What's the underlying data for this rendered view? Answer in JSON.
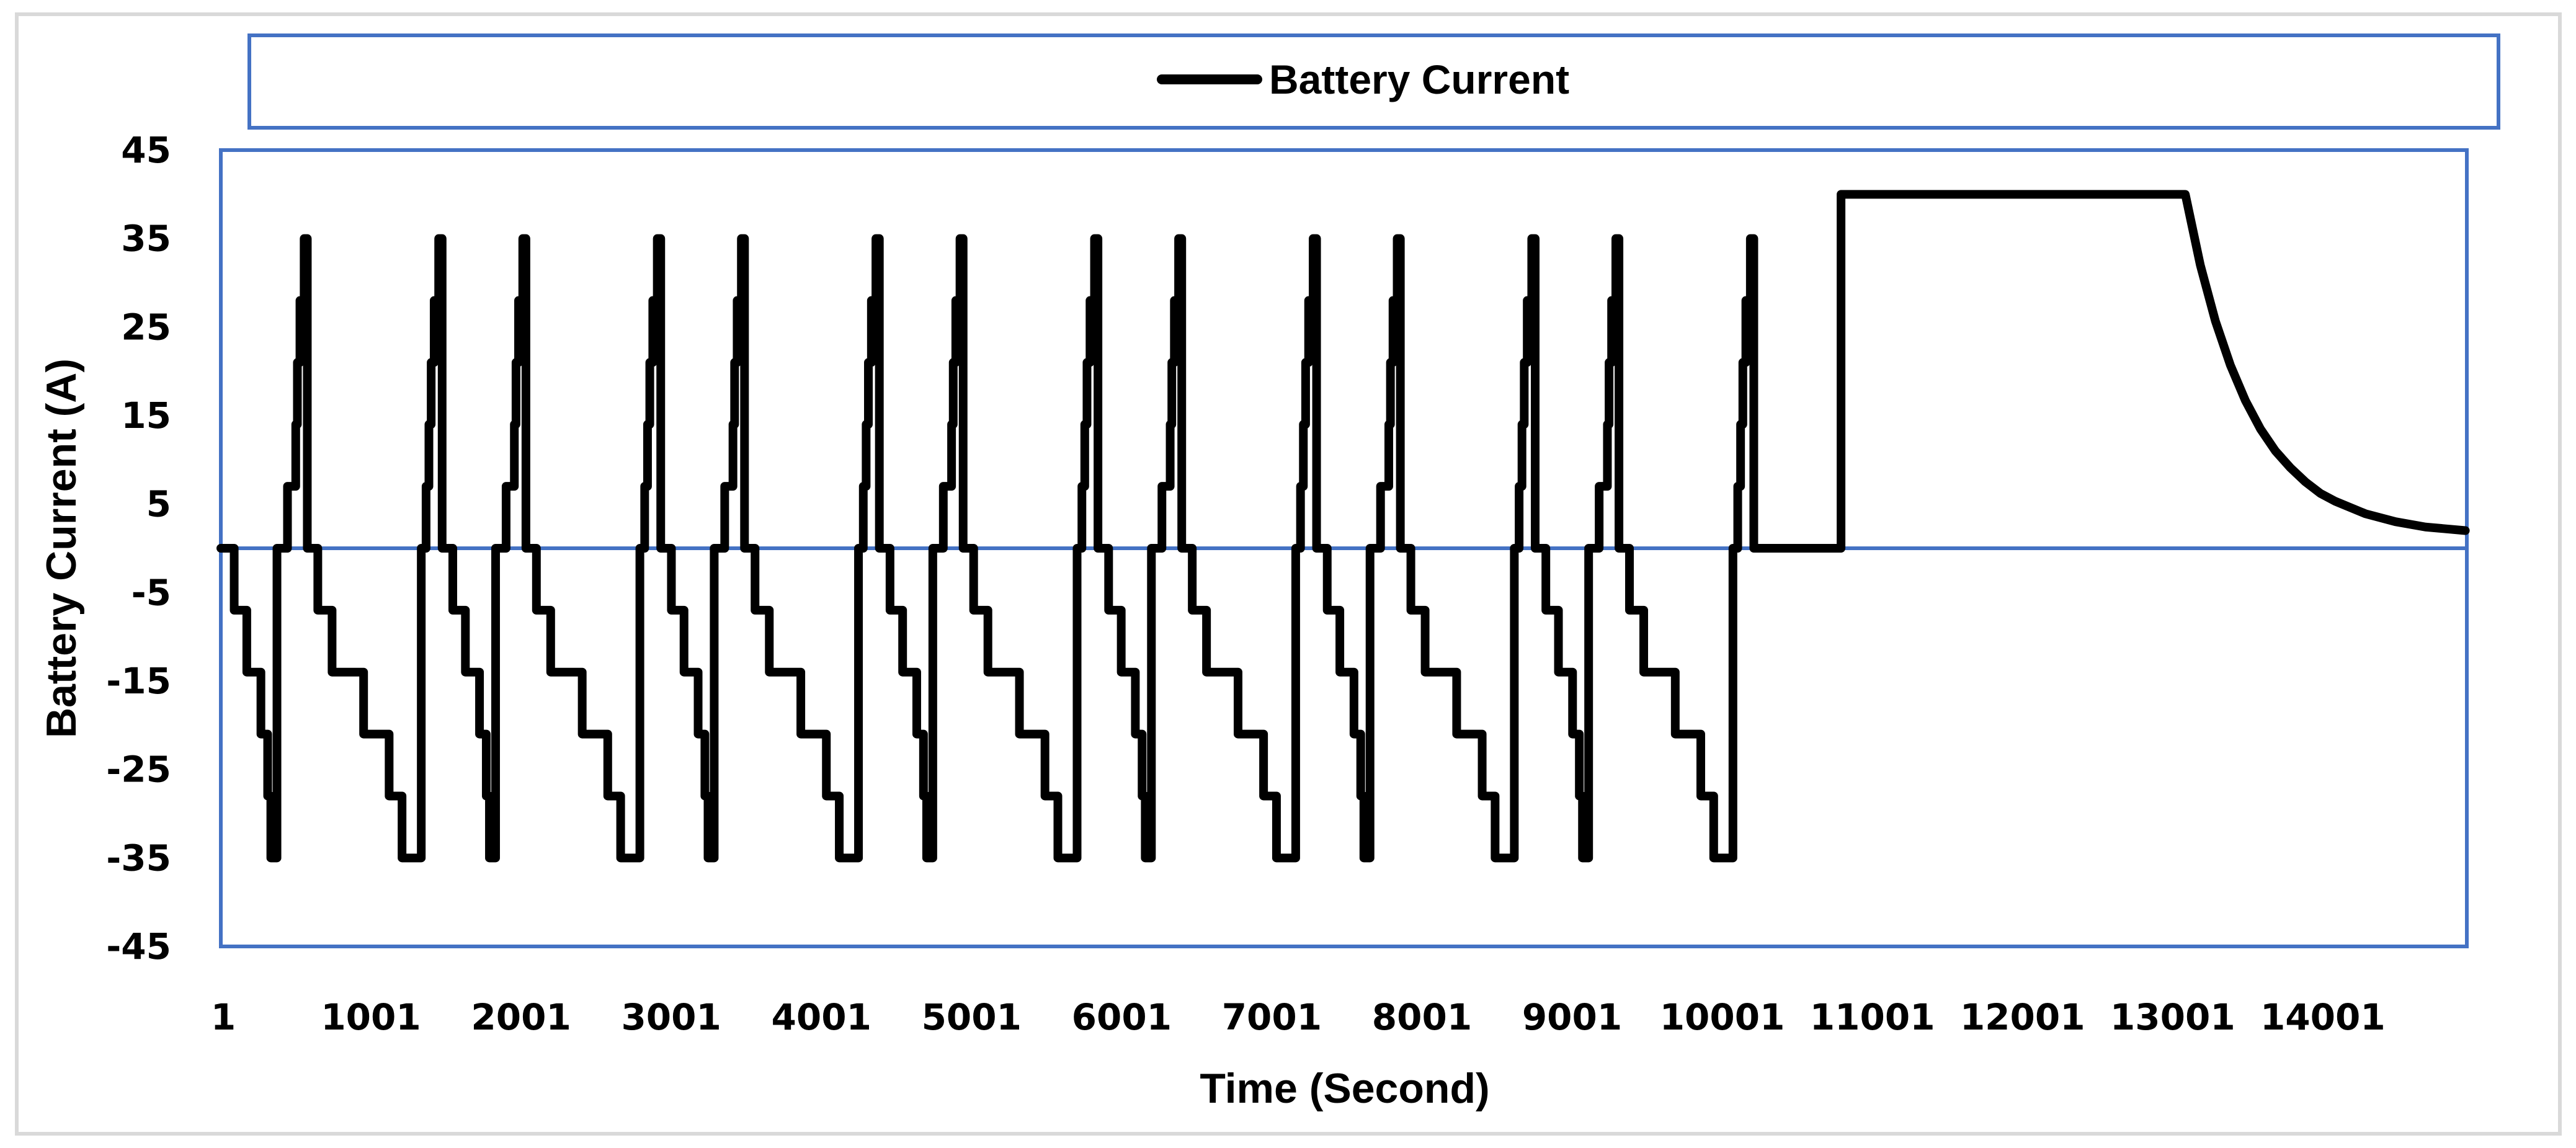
{
  "chart_data": {
    "type": "line",
    "title": "",
    "xlabel": "Time (Second)",
    "ylabel": "Battery Current (A)",
    "xlim": [
      1,
      14960
    ],
    "ylim": [
      -45,
      45
    ],
    "x_ticks": [
      "1",
      "1001",
      "2001",
      "3001",
      "4001",
      "5001",
      "6001",
      "7001",
      "8001",
      "9001",
      "10001",
      "11001",
      "12001",
      "13001",
      "14001"
    ],
    "y_ticks": [
      45,
      35,
      25,
      15,
      5,
      -5,
      -15,
      -25,
      -35,
      -45
    ],
    "grid": false,
    "legend": {
      "position": "top",
      "entries": [
        "Battery Current"
      ]
    },
    "colors": {
      "series": "#000000",
      "frame": "#4472c4",
      "outer_border": "#d9d9d9"
    },
    "series": [
      {
        "name": "Battery Current",
        "interpolation": "step-after",
        "step_changes": [
          [
            1,
            0
          ],
          [
            90,
            -7
          ],
          [
            174,
            -14
          ],
          [
            268,
            -21
          ],
          [
            313,
            -28
          ],
          [
            334,
            -35
          ],
          [
            375,
            0
          ],
          [
            445,
            7
          ],
          [
            500,
            14
          ],
          [
            511,
            21
          ],
          [
            528,
            28
          ],
          [
            556,
            35
          ],
          [
            577,
            0
          ],
          [
            647,
            -7
          ],
          [
            742,
            -14
          ],
          [
            952,
            -21
          ],
          [
            1122,
            -28
          ],
          [
            1208,
            -35
          ],
          [
            1336,
            0
          ],
          [
            1368,
            7
          ],
          [
            1387,
            14
          ],
          [
            1402,
            21
          ],
          [
            1422,
            28
          ],
          [
            1452,
            35
          ],
          [
            1475,
            0
          ],
          [
            1546,
            -7
          ],
          [
            1630,
            -14
          ],
          [
            1724,
            -21
          ],
          [
            1769,
            -28
          ],
          [
            1790,
            -35
          ],
          [
            1831,
            0
          ],
          [
            1901,
            7
          ],
          [
            1956,
            14
          ],
          [
            1967,
            21
          ],
          [
            1984,
            28
          ],
          [
            2012,
            35
          ],
          [
            2033,
            0
          ],
          [
            2103,
            -7
          ],
          [
            2198,
            -14
          ],
          [
            2408,
            -21
          ],
          [
            2578,
            -28
          ],
          [
            2664,
            -35
          ],
          [
            2792,
            0
          ],
          [
            2824,
            7
          ],
          [
            2843,
            14
          ],
          [
            2858,
            21
          ],
          [
            2878,
            28
          ],
          [
            2908,
            35
          ],
          [
            2931,
            0
          ],
          [
            3002,
            -7
          ],
          [
            3086,
            -14
          ],
          [
            3180,
            -21
          ],
          [
            3225,
            -28
          ],
          [
            3246,
            -35
          ],
          [
            3287,
            0
          ],
          [
            3357,
            7
          ],
          [
            3412,
            14
          ],
          [
            3423,
            21
          ],
          [
            3440,
            28
          ],
          [
            3468,
            35
          ],
          [
            3489,
            0
          ],
          [
            3559,
            -7
          ],
          [
            3654,
            -14
          ],
          [
            3864,
            -21
          ],
          [
            4034,
            -28
          ],
          [
            4120,
            -35
          ],
          [
            4248,
            0
          ],
          [
            4280,
            7
          ],
          [
            4299,
            14
          ],
          [
            4314,
            21
          ],
          [
            4334,
            28
          ],
          [
            4364,
            35
          ],
          [
            4387,
            0
          ],
          [
            4458,
            -7
          ],
          [
            4542,
            -14
          ],
          [
            4636,
            -21
          ],
          [
            4681,
            -28
          ],
          [
            4702,
            -35
          ],
          [
            4743,
            0
          ],
          [
            4813,
            7
          ],
          [
            4868,
            14
          ],
          [
            4879,
            21
          ],
          [
            4896,
            28
          ],
          [
            4924,
            35
          ],
          [
            4945,
            0
          ],
          [
            5015,
            -7
          ],
          [
            5110,
            -14
          ],
          [
            5320,
            -21
          ],
          [
            5490,
            -28
          ],
          [
            5576,
            -35
          ],
          [
            5704,
            0
          ],
          [
            5736,
            7
          ],
          [
            5755,
            14
          ],
          [
            5770,
            21
          ],
          [
            5790,
            28
          ],
          [
            5820,
            35
          ],
          [
            5843,
            0
          ],
          [
            5914,
            -7
          ],
          [
            5998,
            -14
          ],
          [
            6092,
            -21
          ],
          [
            6137,
            -28
          ],
          [
            6158,
            -35
          ],
          [
            6199,
            0
          ],
          [
            6269,
            7
          ],
          [
            6324,
            14
          ],
          [
            6335,
            21
          ],
          [
            6352,
            28
          ],
          [
            6380,
            35
          ],
          [
            6401,
            0
          ],
          [
            6471,
            -7
          ],
          [
            6566,
            -14
          ],
          [
            6776,
            -21
          ],
          [
            6946,
            -28
          ],
          [
            7032,
            -35
          ],
          [
            7160,
            0
          ],
          [
            7192,
            7
          ],
          [
            7211,
            14
          ],
          [
            7226,
            21
          ],
          [
            7246,
            28
          ],
          [
            7276,
            35
          ],
          [
            7299,
            0
          ],
          [
            7370,
            -7
          ],
          [
            7454,
            -14
          ],
          [
            7548,
            -21
          ],
          [
            7593,
            -28
          ],
          [
            7614,
            -35
          ],
          [
            7655,
            0
          ],
          [
            7725,
            7
          ],
          [
            7780,
            14
          ],
          [
            7791,
            21
          ],
          [
            7808,
            28
          ],
          [
            7836,
            35
          ],
          [
            7857,
            0
          ],
          [
            7927,
            -7
          ],
          [
            8022,
            -14
          ],
          [
            8232,
            -21
          ],
          [
            8402,
            -28
          ],
          [
            8488,
            -35
          ],
          [
            8616,
            0
          ],
          [
            8648,
            7
          ],
          [
            8667,
            14
          ],
          [
            8682,
            21
          ],
          [
            8702,
            28
          ],
          [
            8732,
            35
          ],
          [
            8755,
            0
          ],
          [
            8826,
            -7
          ],
          [
            8910,
            -14
          ],
          [
            9004,
            -21
          ],
          [
            9049,
            -28
          ],
          [
            9070,
            -35
          ],
          [
            9111,
            0
          ],
          [
            9181,
            7
          ],
          [
            9236,
            14
          ],
          [
            9247,
            21
          ],
          [
            9264,
            28
          ],
          [
            9292,
            35
          ],
          [
            9313,
            0
          ],
          [
            9383,
            -7
          ],
          [
            9478,
            -14
          ],
          [
            9688,
            -21
          ],
          [
            9858,
            -28
          ],
          [
            9944,
            -35
          ],
          [
            10072,
            0
          ],
          [
            10104,
            7
          ],
          [
            10123,
            14
          ],
          [
            10138,
            21
          ],
          [
            10158,
            28
          ],
          [
            10188,
            35
          ],
          [
            10211,
            0
          ],
          [
            10792,
            40
          ],
          [
            13085,
            40
          ]
        ],
        "decay_points": [
          [
            13085,
            40.0
          ],
          [
            13185,
            32.0
          ],
          [
            13285,
            25.7
          ],
          [
            13385,
            20.7
          ],
          [
            13485,
            16.7
          ],
          [
            13585,
            13.5
          ],
          [
            13685,
            11.0
          ],
          [
            13785,
            9.1
          ],
          [
            13885,
            7.5
          ],
          [
            13985,
            6.2
          ],
          [
            14085,
            5.3
          ],
          [
            14285,
            3.9
          ],
          [
            14485,
            3.0
          ],
          [
            14685,
            2.4
          ],
          [
            14950,
            2.0
          ]
        ]
      }
    ]
  }
}
